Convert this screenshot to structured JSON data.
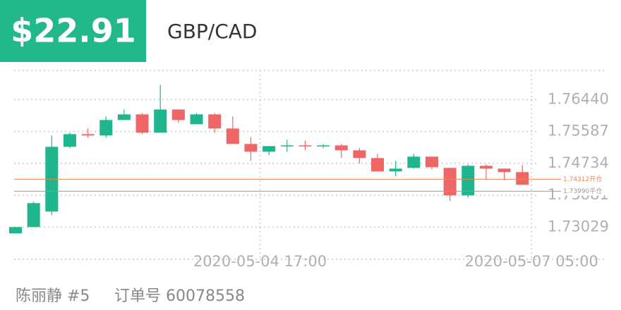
{
  "header": {
    "price": "$22.91",
    "pair": "GBP/CAD"
  },
  "chart_data": {
    "type": "candlestick",
    "categories": [
      null,
      null,
      null,
      null,
      null,
      null,
      null,
      null,
      null,
      null,
      null,
      null,
      null,
      "2020-05-04 17:00",
      null,
      null,
      null,
      null,
      null,
      null,
      null,
      null,
      null,
      null,
      null,
      null,
      null,
      null,
      "2020-05-07 05:00"
    ],
    "open": [
      1.72863,
      1.73032,
      1.73446,
      1.75178,
      1.75517,
      1.7548,
      1.75894,
      1.76045,
      1.75555,
      1.76176,
      1.75781,
      1.76045,
      1.75668,
      1.75254,
      1.75047,
      1.75197,
      1.75216,
      1.75197,
      1.75216,
      1.75084,
      1.74877,
      1.7452,
      1.74614,
      1.74915,
      1.74614,
      1.73879,
      1.7467,
      1.74595,
      1.74501
    ],
    "high": [
      1.73032,
      1.7371,
      1.7548,
      1.75555,
      1.75668,
      1.75988,
      1.76176,
      1.76082,
      1.76835,
      1.76176,
      1.76082,
      1.76082,
      1.75988,
      1.75442,
      1.75197,
      1.75366,
      1.75348,
      1.75254,
      1.75254,
      1.75141,
      1.7499,
      1.74802,
      1.7499,
      1.74915,
      1.74614,
      1.74708,
      1.74708,
      1.74595,
      1.74689
    ],
    "low": [
      1.72863,
      1.73032,
      1.7335,
      1.7514,
      1.75423,
      1.75423,
      1.75894,
      1.75517,
      1.75555,
      1.75818,
      1.75781,
      1.75555,
      1.75254,
      1.74802,
      1.74952,
      1.75047,
      1.75084,
      1.75141,
      1.74877,
      1.74727,
      1.7452,
      1.74388,
      1.74595,
      1.74576,
      1.73729,
      1.73823,
      1.74294,
      1.74294,
      1.74162
    ],
    "close": [
      1.73032,
      1.73672,
      1.75178,
      1.75517,
      1.7548,
      1.75894,
      1.76045,
      1.75555,
      1.76176,
      1.75894,
      1.76045,
      1.75668,
      1.75254,
      1.75047,
      1.75197,
      1.75216,
      1.75197,
      1.75216,
      1.75084,
      1.74877,
      1.7452,
      1.74595,
      1.74915,
      1.74632,
      1.73879,
      1.7467,
      1.74595,
      1.74501,
      1.74162
    ],
    "up_color": "#1fb58d",
    "down_color": "#ef6666",
    "ylim": [
      1.7217,
      1.7722
    ],
    "yticks": [
      {
        "value": 1.7644,
        "label": "1.76440"
      },
      1.75587,
      1.74734,
      1.73881,
      1.73029
    ],
    "reference_lines": [
      {
        "value": 1.74312,
        "label": "1.74312开仓",
        "color": "#f0845a"
      },
      {
        "value": 1.7399,
        "label": "1.73990平仓",
        "color": "#9a9a9a"
      }
    ],
    "grid": true
  },
  "footer": {
    "name": "陈丽静 #5",
    "order": "订单号 60078558"
  }
}
